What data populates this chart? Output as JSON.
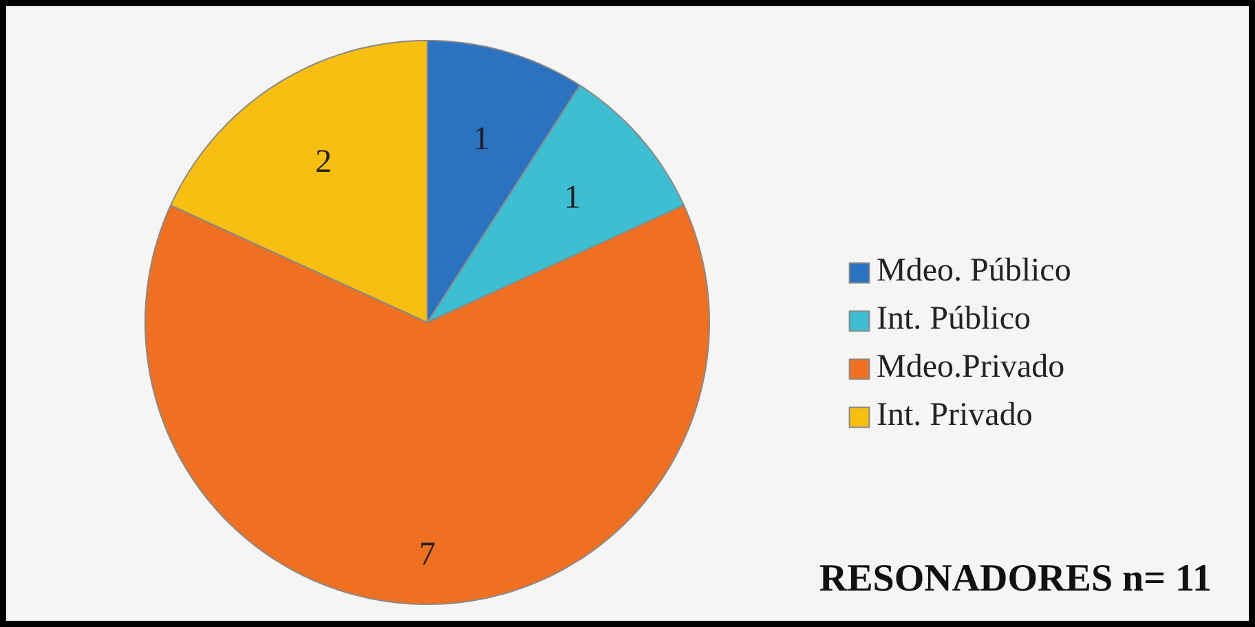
{
  "chart_data": {
    "type": "pie",
    "categories": [
      "Mdeo. Público",
      "Int. Público",
      "Mdeo.Privado",
      "Int. Privado"
    ],
    "values": [
      1,
      1,
      7,
      2
    ],
    "colors": [
      "#2b72c0",
      "#3ebfd1",
      "#f07022",
      "#f8bf12"
    ],
    "data_labels": true,
    "legend": "right",
    "annotations": [
      "RESONADORES n= 11"
    ]
  }
}
